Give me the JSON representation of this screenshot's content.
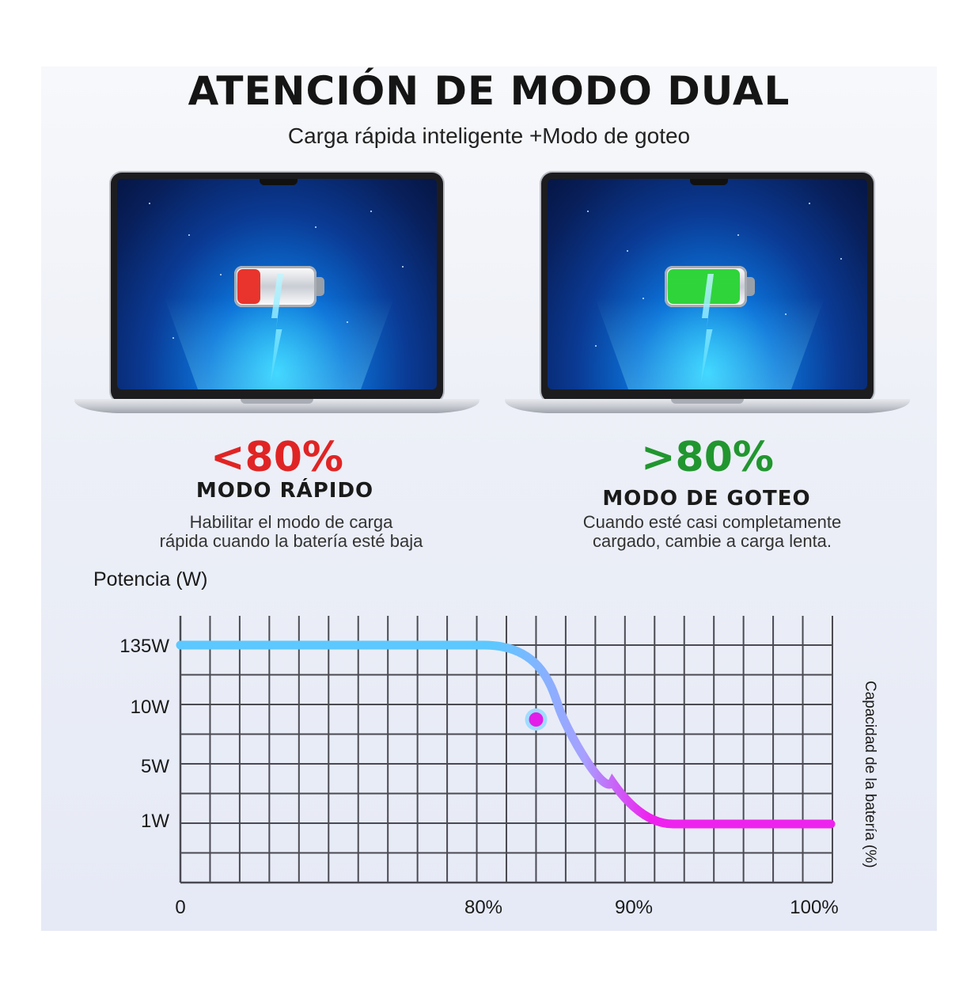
{
  "header": {
    "title": "ATENCIÓN DE MODO DUAL",
    "subtitle": "Carga rápida inteligente +Modo de goteo"
  },
  "modes": [
    {
      "percent": "<80%",
      "name": "MODO RÁPIDO",
      "description_line1": "Habilitar el modo de carga",
      "description_line2": "rápida cuando la batería esté baja",
      "color": "#e02424",
      "battery_level": 0.3,
      "battery_color": "#e8342c"
    },
    {
      "percent": ">80%",
      "name": "MODO DE GOTEO",
      "description_line1": "Cuando esté casi completamente",
      "description_line2": "cargado, cambie a carga lenta.",
      "color": "#21962f",
      "battery_level": 0.95,
      "battery_color": "#2fd43a"
    }
  ],
  "chart_data": {
    "type": "line",
    "ylabel": "Potencia (W)",
    "xlabel": "Capacidad de la batería (%)",
    "y_ticks": [
      "135W",
      "10W",
      "5W",
      "1W"
    ],
    "x_ticks": [
      "0",
      "80%",
      "90%",
      "100%"
    ],
    "grid": true,
    "series": [
      {
        "points": [
          {
            "x": 0,
            "y": "135W"
          },
          {
            "x": 60,
            "y": "135W"
          },
          {
            "x": 80,
            "y": "135W"
          },
          {
            "x": 85,
            "y": "10W"
          },
          {
            "x": 87,
            "y": "5W"
          },
          {
            "x": 92,
            "y": "1W"
          },
          {
            "x": 100,
            "y": "1W"
          }
        ],
        "color_start": "#5cc8ff",
        "color_end": "#ee22ee"
      }
    ],
    "highlight_point": {
      "x": 83.5,
      "y": "10W"
    }
  }
}
